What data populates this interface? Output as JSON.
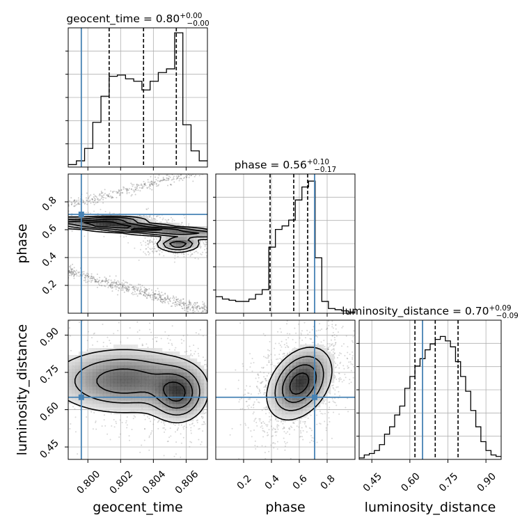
{
  "figure": {
    "type": "corner-plot",
    "truth_color": "#4682b4",
    "line_color": "#000000"
  },
  "chart_data": [
    {
      "type": "histogram",
      "panel": "geocent_time-1d",
      "title_param": "geocent_time = 0.80",
      "title_plus": "+0.00",
      "title_minus": "−0.00",
      "bins": [
        0.7988,
        0.7993,
        0.7998,
        0.8003,
        0.8008,
        0.8013,
        0.8018,
        0.8023,
        0.8028,
        0.8033,
        0.8038,
        0.8043,
        0.8048,
        0.8053,
        0.8058,
        0.8063,
        0.8068,
        0.8073
      ],
      "counts": [
        2,
        5,
        15,
        36,
        57,
        73,
        74,
        71,
        69,
        62,
        69,
        76,
        79,
        108,
        34,
        13,
        5
      ],
      "ymax": 112,
      "xlim": [
        0.7988,
        0.8073
      ],
      "quantiles": [
        0.8013,
        0.8034,
        0.8054
      ],
      "truth": 0.7996
    },
    {
      "type": "histogram",
      "panel": "phase-1d",
      "title_param": "phase = 0.56",
      "title_plus": "+0.10",
      "title_minus": "−0.17",
      "bins": [
        0.0,
        0.0476,
        0.0952,
        0.1428,
        0.1904,
        0.238,
        0.2856,
        0.3332,
        0.3808,
        0.4284,
        0.476,
        0.5236,
        0.5712,
        0.6188,
        0.6664,
        0.714,
        0.7616,
        0.8092,
        0.8568,
        0.9044,
        0.952,
        1.0
      ],
      "counts": [
        14,
        12,
        11,
        10,
        10,
        12,
        16,
        20,
        56,
        71,
        74,
        79,
        96,
        107,
        112,
        47,
        10,
        4,
        3,
        2,
        1
      ],
      "ymax": 118,
      "xlim": [
        0.0,
        1.0
      ],
      "quantiles": [
        0.39,
        0.56,
        0.66
      ],
      "truth": 0.71
    },
    {
      "type": "histogram",
      "panel": "luminosity_distance-1d",
      "title_param": "luminosity_distance = 0.70",
      "title_plus": "+0.09",
      "title_minus": "−0.09",
      "bins": [
        0.4,
        0.42,
        0.44,
        0.46,
        0.48,
        0.5,
        0.52,
        0.54,
        0.56,
        0.58,
        0.6,
        0.62,
        0.64,
        0.66,
        0.68,
        0.7,
        0.72,
        0.74,
        0.76,
        0.78,
        0.8,
        0.82,
        0.84,
        0.86,
        0.88,
        0.9,
        0.92,
        0.94,
        0.96
      ],
      "counts": [
        1,
        3,
        4,
        6,
        10,
        17,
        22,
        30,
        36,
        48,
        56,
        63,
        68,
        74,
        78,
        81,
        83,
        80,
        76,
        66,
        56,
        46,
        33,
        22,
        12,
        6,
        3,
        2
      ],
      "ymax": 94,
      "xlim": [
        0.4,
        0.96
      ],
      "quantiles": [
        0.62,
        0.7,
        0.79
      ],
      "truth": 0.65
    },
    {
      "type": "contour",
      "panel": "phase-vs-geocent_time",
      "xlim": [
        0.7988,
        0.8073
      ],
      "ylim": [
        0.0,
        1.0
      ],
      "truth": [
        0.7996,
        0.71
      ],
      "blobs": [
        {
          "cx": 0.8026,
          "cy": 0.612,
          "sx": 0.0042,
          "sy": 0.045,
          "rho": -0.88,
          "w": 1.0
        },
        {
          "cx": 0.8055,
          "cy": 0.495,
          "sx": 0.0007,
          "sy": 0.03,
          "rho": 0.0,
          "w": 0.8
        },
        {
          "cx": 0.8015,
          "cy": 0.665,
          "sx": 0.0012,
          "sy": 0.018,
          "rho": 0.0,
          "w": 0.7
        }
      ]
    },
    {
      "type": "contour",
      "panel": "luminosity_distance-vs-geocent_time",
      "xlim": [
        0.7988,
        0.8073
      ],
      "ylim": [
        0.4,
        0.96
      ],
      "truth": [
        0.7996,
        0.65
      ],
      "blobs": [
        {
          "cx": 0.8022,
          "cy": 0.715,
          "sx": 0.0024,
          "sy": 0.07,
          "rho": 0.0,
          "w": 1.0
        },
        {
          "cx": 0.8055,
          "cy": 0.66,
          "sx": 0.0009,
          "sy": 0.06,
          "rho": 0.0,
          "w": 1.0
        }
      ]
    },
    {
      "type": "contour",
      "panel": "luminosity_distance-vs-phase",
      "xlim": [
        0.0,
        1.0
      ],
      "ylim": [
        0.4,
        0.96
      ],
      "truth": [
        0.71,
        0.65
      ],
      "blobs": [
        {
          "cx": 0.6,
          "cy": 0.705,
          "sx": 0.12,
          "sy": 0.075,
          "rho": 0.35,
          "w": 1.0
        }
      ]
    }
  ],
  "axes": {
    "geocent_time": {
      "label": "geocent_time",
      "ticks": [
        0.8,
        0.802,
        0.804,
        0.806
      ],
      "tick_labels": [
        "0.800",
        "0.802",
        "0.804",
        "0.806"
      ]
    },
    "phase": {
      "label": "phase",
      "ticks": [
        0.2,
        0.4,
        0.6,
        0.8
      ],
      "tick_labels": [
        "0.2",
        "0.4",
        "0.6",
        "0.8"
      ]
    },
    "luminosity_distance": {
      "label": "luminosity_distance",
      "ticks": [
        0.45,
        0.6,
        0.75,
        0.9
      ],
      "tick_labels": [
        "0.45",
        "0.60",
        "0.75",
        "0.90"
      ]
    }
  }
}
